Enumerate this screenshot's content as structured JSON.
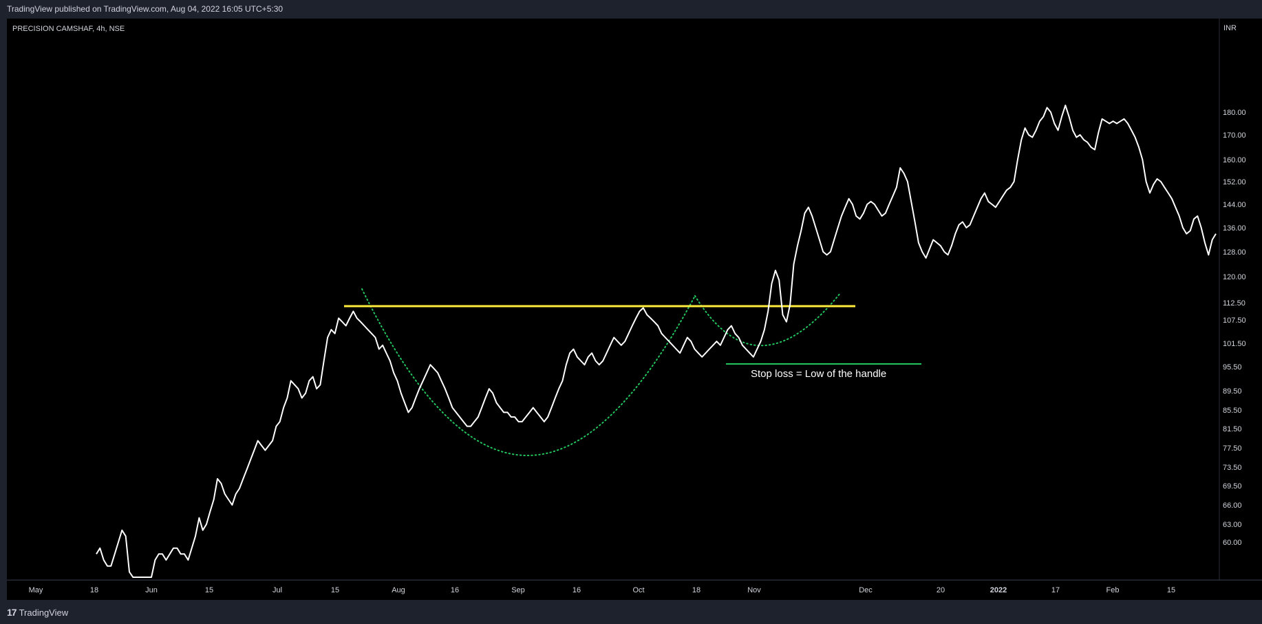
{
  "header": {
    "published": "TradingView published on TradingView.com, Aug 04, 2022 16:05 UTC+5:30"
  },
  "footer": {
    "brand": "TradingView",
    "logo_icon": "tradingview-logo-icon"
  },
  "colors": {
    "background": "#000000",
    "frame": "#1e222d",
    "price_line": "#ffffff",
    "resistance": "#ffeb3b",
    "cup_curve": "#22c55e",
    "stop_loss": "#22c55e",
    "axis_text": "#d1d4dc"
  },
  "chart_data": {
    "type": "line",
    "symbol_label": "PRECISION CAMSHAF, 4h, NSE",
    "currency": "INR",
    "y_ticks": [
      "60.00",
      "63.00",
      "66.00",
      "69.50",
      "73.50",
      "77.50",
      "81.50",
      "85.50",
      "89.50",
      "95.50",
      "101.50",
      "107.50",
      "112.50",
      "120.00",
      "128.00",
      "136.00",
      "144.00",
      "152.00",
      "160.00",
      "170.00",
      "180.00"
    ],
    "x_ticks": [
      "May",
      "18",
      "Jun",
      "15",
      "Jul",
      "15",
      "Aug",
      "16",
      "Sep",
      "16",
      "Oct",
      "18",
      "Nov",
      "Dec",
      "20",
      "2022",
      "17",
      "Feb",
      "15"
    ],
    "x_ticks_bold": [
      "2022"
    ],
    "series": [
      {
        "values": [
          58,
          59,
          57,
          56,
          56,
          58,
          60,
          62,
          61,
          55,
          52,
          49,
          48,
          49,
          51,
          54,
          57,
          58,
          58,
          57,
          58,
          59,
          59,
          58,
          58,
          57,
          59,
          61,
          64,
          62,
          63,
          65,
          67,
          71,
          70,
          68,
          67,
          66,
          68,
          69,
          71,
          73,
          75,
          77,
          79,
          78,
          77,
          78,
          79,
          82,
          83,
          86,
          88,
          92,
          91,
          90,
          88,
          89,
          92,
          93,
          90,
          91,
          97,
          103,
          105,
          104,
          108,
          107,
          106,
          108,
          110,
          108,
          107,
          106,
          105,
          104,
          103,
          100,
          101,
          99,
          97,
          94,
          92,
          89,
          87,
          85,
          86,
          88,
          90,
          92,
          94,
          96,
          95,
          94,
          92,
          90,
          88,
          86,
          85,
          84,
          83,
          82,
          82,
          83,
          84,
          86,
          88,
          90,
          89,
          87,
          86,
          85,
          85,
          84,
          84,
          83,
          83,
          84,
          85,
          86,
          85,
          84,
          83,
          84,
          86,
          88,
          90,
          92,
          96,
          99,
          100,
          98,
          97,
          96,
          98,
          99,
          97,
          96,
          97,
          99,
          101,
          103,
          102,
          101,
          102,
          104,
          106,
          108,
          110,
          111,
          109,
          108,
          107,
          106,
          104,
          103,
          102,
          101,
          100,
          99,
          101,
          103,
          102,
          100,
          99,
          98,
          99,
          100,
          101,
          102,
          101,
          103,
          105,
          106,
          104,
          103,
          101,
          100,
          99,
          98,
          100,
          102,
          105,
          110,
          118,
          122,
          119,
          109,
          107,
          112,
          124,
          130,
          135,
          141,
          143,
          140,
          136,
          132,
          128,
          127,
          128,
          132,
          136,
          140,
          143,
          146,
          144,
          140,
          139,
          141,
          144,
          145,
          144,
          142,
          140,
          141,
          144,
          147,
          150,
          157,
          155,
          152,
          145,
          138,
          131,
          128,
          126,
          129,
          132,
          131,
          130,
          128,
          127,
          130,
          134,
          137,
          138,
          136,
          137,
          140,
          143,
          146,
          148,
          145,
          144,
          143,
          145,
          147,
          149,
          150,
          152,
          160,
          168,
          173,
          170,
          169,
          172,
          176,
          178,
          182,
          180,
          175,
          172,
          178,
          183,
          178,
          172,
          169,
          170,
          168,
          167,
          165,
          164,
          171,
          177,
          176,
          175,
          176,
          175,
          176,
          177,
          175,
          172,
          169,
          165,
          160,
          152,
          148,
          151,
          153,
          152,
          150,
          148,
          146,
          143,
          140,
          136,
          134,
          135,
          139,
          140,
          136,
          131,
          127,
          132,
          134
        ]
      }
    ],
    "annotations": {
      "resistance_level": 112.5,
      "stop_loss_level": 95.5,
      "stop_loss_label": "Stop loss = Low of the handle"
    }
  }
}
